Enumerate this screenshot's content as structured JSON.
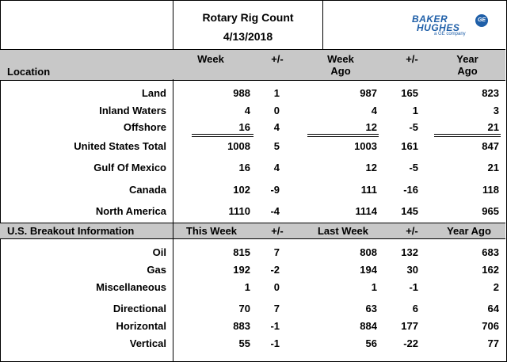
{
  "header": {
    "title": "Rotary Rig Count",
    "date": "4/13/2018",
    "logo_line1": "BAKER",
    "logo_line2": "HUGHES",
    "logo_sub": "a GE company",
    "logo_mark": "GE"
  },
  "section1": {
    "location_label": "Location",
    "columns": [
      "Week",
      "+/-",
      "Week Ago",
      "+/-",
      "Year Ago"
    ],
    "rows": [
      {
        "label": "Land",
        "values": [
          "988",
          "1",
          "987",
          "165",
          "823"
        ]
      },
      {
        "label": "Inland Waters",
        "values": [
          "4",
          "0",
          "4",
          "1",
          "3"
        ]
      },
      {
        "label": "Offshore",
        "values": [
          "16",
          "4",
          "12",
          "-5",
          "21"
        ]
      },
      {
        "label": "United States Total",
        "values": [
          "1008",
          "5",
          "1003",
          "161",
          "847"
        ]
      },
      {
        "label": "Gulf Of Mexico",
        "values": [
          "16",
          "4",
          "12",
          "-5",
          "21"
        ]
      },
      {
        "label": "Canada",
        "values": [
          "102",
          "-9",
          "111",
          "-16",
          "118"
        ]
      },
      {
        "label": "North America",
        "values": [
          "1110",
          "-4",
          "1114",
          "145",
          "965"
        ]
      }
    ]
  },
  "section2": {
    "label": "U.S. Breakout Information",
    "columns": [
      "This Week",
      "+/-",
      "Last Week",
      "+/-",
      "Year Ago"
    ],
    "rows": [
      {
        "label": "Oil",
        "values": [
          "815",
          "7",
          "808",
          "132",
          "683"
        ]
      },
      {
        "label": "Gas",
        "values": [
          "192",
          "-2",
          "194",
          "30",
          "162"
        ]
      },
      {
        "label": "Miscellaneous",
        "values": [
          "1",
          "0",
          "1",
          "-1",
          "2"
        ]
      },
      {
        "label": "Directional",
        "values": [
          "70",
          "7",
          "63",
          "6",
          "64"
        ]
      },
      {
        "label": "Horizontal",
        "values": [
          "883",
          "-1",
          "884",
          "177",
          "706"
        ]
      },
      {
        "label": "Vertical",
        "values": [
          "55",
          "-1",
          "56",
          "-22",
          "77"
        ]
      }
    ]
  }
}
